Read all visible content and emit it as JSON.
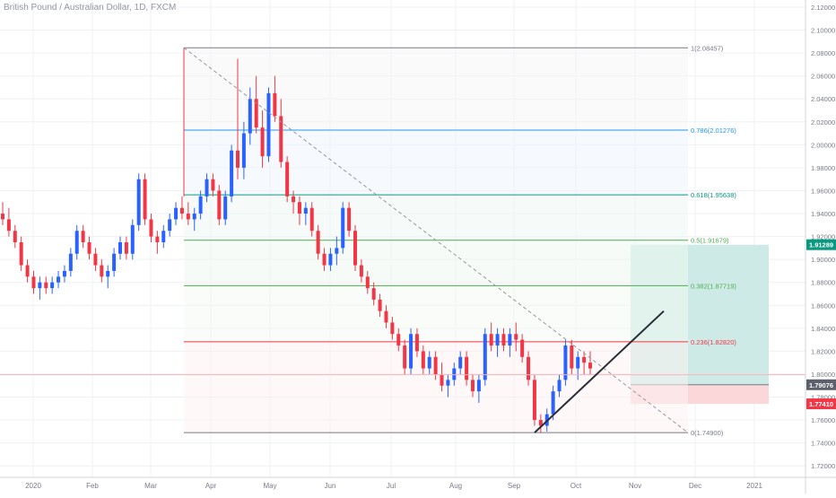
{
  "header": {
    "symbol_label": "British Pound / Australian Dollar, 1D, FXCM"
  },
  "colors": {
    "up": "#2962ff",
    "down": "#f23645",
    "grid": "#eef0f4",
    "axis_text": "#787b86",
    "fib_0": "#787b86",
    "fib_0236": "#f23645",
    "fib_0382": "#4caf50",
    "fib_05": "#4caf50",
    "fib_0618": "#089981",
    "fib_0786": "#2196f3",
    "fib_1": "#787b86",
    "target_zone": "#cdeae6",
    "stop_zone": "#fbd7d9",
    "tp_badge": "#089981",
    "entry_badge": "#5d606b",
    "stop_badge": "#f23645",
    "trendline": "#2a2e39",
    "current_price_line": "#f7b5bb"
  },
  "chart_data": {
    "type": "candlestick",
    "title": "British Pound / Australian Dollar, 1D, FXCM",
    "ylim": [
      1.71,
      2.12
    ],
    "y_ticks": [
      "1.72000",
      "1.74000",
      "1.76000",
      "1.78000",
      "1.80000",
      "1.82000",
      "1.84000",
      "1.86000",
      "1.88000",
      "1.90000",
      "1.92000",
      "1.94000",
      "1.96000",
      "1.98000",
      "2.00000",
      "2.02000",
      "2.04000",
      "2.06000",
      "2.08000",
      "2.10000",
      "2.12000"
    ],
    "x_ticks": [
      "2020",
      "Feb",
      "Mar",
      "Apr",
      "May",
      "Jun",
      "Jul",
      "Aug",
      "Sep",
      "Oct",
      "Nov",
      "Dec",
      "2021"
    ],
    "fibonacci": [
      {
        "level": "1",
        "value": 2.08457,
        "label": "1(2.08457)"
      },
      {
        "level": "0.786",
        "value": 2.01276,
        "label": "0.786(2.01276)"
      },
      {
        "level": "0.618",
        "value": 1.95638,
        "label": "0.618(1.95638)"
      },
      {
        "level": "0.5",
        "value": 1.91679,
        "label": "0.5(1.91679)"
      },
      {
        "level": "0.382",
        "value": 1.87719,
        "label": "0.382(1.87719)"
      },
      {
        "level": "0.236",
        "value": 1.8282,
        "label": "0.236(1.82820)"
      },
      {
        "level": "0",
        "value": 1.749,
        "label": "0(1.74900)"
      }
    ],
    "price_labels": {
      "take_profit": "1.91289",
      "entry": "1.79076",
      "stop": "1.77410"
    },
    "current_price": 1.7995,
    "trendline": {
      "from": [
        "Sep 11",
        1.749
      ],
      "to": [
        "Nov 15",
        1.855
      ]
    },
    "diagonal_dashed": {
      "from": [
        "Mar 19",
        2.08457
      ],
      "to": [
        "Dec",
        1.749
      ]
    },
    "candles_ohlc_approx": [
      [
        1.94,
        1.95,
        1.93,
        1.935
      ],
      [
        1.935,
        1.945,
        1.92,
        1.925
      ],
      [
        1.925,
        1.93,
        1.91,
        1.915
      ],
      [
        1.915,
        1.92,
        1.89,
        1.895
      ],
      [
        1.895,
        1.9,
        1.88,
        1.885
      ],
      [
        1.885,
        1.89,
        1.87,
        1.875
      ],
      [
        1.875,
        1.885,
        1.865,
        1.88
      ],
      [
        1.88,
        1.885,
        1.87,
        1.875
      ],
      [
        1.875,
        1.885,
        1.87,
        1.88
      ],
      [
        1.88,
        1.89,
        1.875,
        1.885
      ],
      [
        1.885,
        1.895,
        1.88,
        1.89
      ],
      [
        1.89,
        1.91,
        1.885,
        1.905
      ],
      [
        1.905,
        1.93,
        1.9,
        1.925
      ],
      [
        1.925,
        1.93,
        1.91,
        1.915
      ],
      [
        1.915,
        1.92,
        1.9,
        1.905
      ],
      [
        1.905,
        1.91,
        1.89,
        1.895
      ],
      [
        1.895,
        1.9,
        1.88,
        1.885
      ],
      [
        1.885,
        1.895,
        1.875,
        1.89
      ],
      [
        1.89,
        1.91,
        1.885,
        1.905
      ],
      [
        1.905,
        1.92,
        1.9,
        1.915
      ],
      [
        1.915,
        1.92,
        1.9,
        1.905
      ],
      [
        1.905,
        1.935,
        1.9,
        1.93
      ],
      [
        1.93,
        1.975,
        1.925,
        1.97
      ],
      [
        1.97,
        1.975,
        1.93,
        1.935
      ],
      [
        1.935,
        1.94,
        1.915,
        1.92
      ],
      [
        1.92,
        1.925,
        1.905,
        1.915
      ],
      [
        1.915,
        1.93,
        1.91,
        1.925
      ],
      [
        1.925,
        1.94,
        1.92,
        1.935
      ],
      [
        1.935,
        1.95,
        1.93,
        1.945
      ],
      [
        1.945,
        1.955,
        1.935,
        1.94
      ],
      [
        1.94,
        1.95,
        1.93,
        1.935
      ],
      [
        1.935,
        1.945,
        1.925,
        1.94
      ],
      [
        1.94,
        1.96,
        1.935,
        1.955
      ],
      [
        1.955,
        1.975,
        1.95,
        1.97
      ],
      [
        1.97,
        1.975,
        1.955,
        1.96
      ],
      [
        1.96,
        1.965,
        1.93,
        1.935
      ],
      [
        1.935,
        1.96,
        1.93,
        1.955
      ],
      [
        1.955,
        2.0,
        1.95,
        1.995
      ],
      [
        1.995,
        2.075,
        1.97,
        1.98
      ],
      [
        1.98,
        2.02,
        1.97,
        2.01
      ],
      [
        2.01,
        2.05,
        2.0,
        2.04
      ],
      [
        2.04,
        2.06,
        2.01,
        2.015
      ],
      [
        2.015,
        2.03,
        1.98,
        1.99
      ],
      [
        1.99,
        2.05,
        1.985,
        2.045
      ],
      [
        2.045,
        2.06,
        2.02,
        2.025
      ],
      [
        2.025,
        2.04,
        1.98,
        1.985
      ],
      [
        1.985,
        1.99,
        1.95,
        1.955
      ],
      [
        1.955,
        1.96,
        1.94,
        1.95
      ],
      [
        1.95,
        1.955,
        1.93,
        1.94
      ],
      [
        1.94,
        1.95,
        1.93,
        1.945
      ],
      [
        1.945,
        1.95,
        1.92,
        1.925
      ],
      [
        1.925,
        1.93,
        1.9,
        1.905
      ],
      [
        1.905,
        1.91,
        1.89,
        1.895
      ],
      [
        1.895,
        1.91,
        1.89,
        1.905
      ],
      [
        1.905,
        1.92,
        1.895,
        1.91
      ],
      [
        1.91,
        1.95,
        1.905,
        1.945
      ],
      [
        1.945,
        1.95,
        1.92,
        1.925
      ],
      [
        1.925,
        1.93,
        1.89,
        1.895
      ],
      [
        1.895,
        1.9,
        1.88,
        1.885
      ],
      [
        1.885,
        1.89,
        1.87,
        1.875
      ],
      [
        1.875,
        1.88,
        1.86,
        1.865
      ],
      [
        1.865,
        1.87,
        1.85,
        1.855
      ],
      [
        1.855,
        1.86,
        1.84,
        1.845
      ],
      [
        1.845,
        1.85,
        1.83,
        1.835
      ],
      [
        1.835,
        1.84,
        1.82,
        1.825
      ],
      [
        1.825,
        1.83,
        1.8,
        1.805
      ],
      [
        1.805,
        1.84,
        1.8,
        1.835
      ],
      [
        1.835,
        1.84,
        1.815,
        1.82
      ],
      [
        1.82,
        1.825,
        1.8,
        1.805
      ],
      [
        1.805,
        1.82,
        1.8,
        1.815
      ],
      [
        1.815,
        1.82,
        1.795,
        1.8
      ],
      [
        1.8,
        1.81,
        1.785,
        1.79
      ],
      [
        1.79,
        1.8,
        1.78,
        1.795
      ],
      [
        1.795,
        1.81,
        1.79,
        1.805
      ],
      [
        1.805,
        1.82,
        1.8,
        1.815
      ],
      [
        1.815,
        1.82,
        1.79,
        1.795
      ],
      [
        1.795,
        1.8,
        1.78,
        1.785
      ],
      [
        1.785,
        1.8,
        1.775,
        1.795
      ],
      [
        1.795,
        1.84,
        1.79,
        1.835
      ],
      [
        1.835,
        1.845,
        1.82,
        1.825
      ],
      [
        1.825,
        1.84,
        1.815,
        1.835
      ],
      [
        1.835,
        1.84,
        1.82,
        1.825
      ],
      [
        1.825,
        1.84,
        1.815,
        1.835
      ],
      [
        1.835,
        1.845,
        1.82,
        1.83
      ],
      [
        1.83,
        1.835,
        1.81,
        1.815
      ],
      [
        1.815,
        1.82,
        1.79,
        1.795
      ],
      [
        1.795,
        1.8,
        1.755,
        1.76
      ],
      [
        1.76,
        1.765,
        1.749,
        1.755
      ],
      [
        1.755,
        1.77,
        1.75,
        1.765
      ],
      [
        1.765,
        1.79,
        1.76,
        1.785
      ],
      [
        1.785,
        1.8,
        1.78,
        1.795
      ],
      [
        1.795,
        1.83,
        1.79,
        1.825
      ],
      [
        1.825,
        1.83,
        1.8,
        1.805
      ],
      [
        1.805,
        1.82,
        1.795,
        1.815
      ],
      [
        1.815,
        1.82,
        1.8,
        1.81
      ],
      [
        1.81,
        1.82,
        1.8,
        1.805
      ]
    ]
  }
}
